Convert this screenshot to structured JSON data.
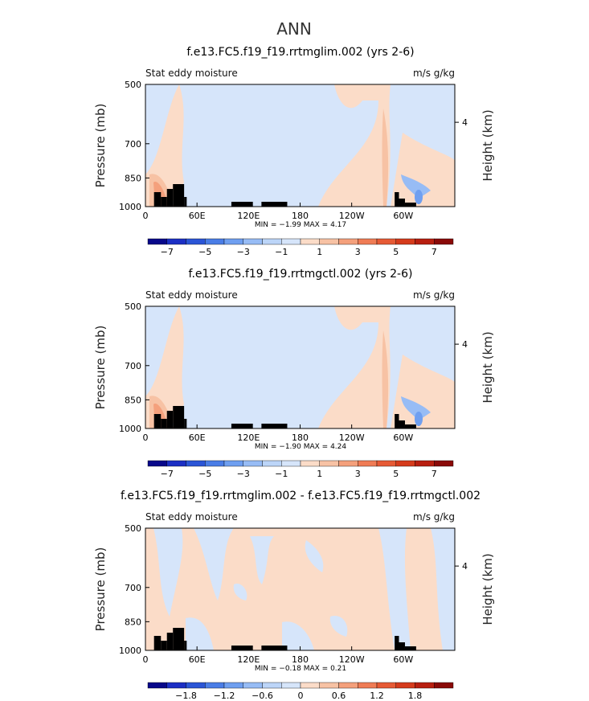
{
  "figure": {
    "title": "ANN"
  },
  "chart_data": [
    {
      "type": "heatmap",
      "title": "f.e13.FC5.f19_f19.rrtmglim.002 (yrs 2-6)",
      "field_label": "Stat eddy moisture",
      "units_label": "m/s g/kg",
      "ylabel": "Pressure (mb)",
      "ylabel_right": "Height (km)",
      "x_ticks": [
        "0",
        "60E",
        "120E",
        "180",
        "120W",
        "60W"
      ],
      "x_tick_lons": [
        0,
        60,
        120,
        180,
        240,
        300
      ],
      "xlim": [
        0,
        360
      ],
      "y_ticks": [
        "500",
        "700",
        "850",
        "1000"
      ],
      "y_tick_vals": [
        500,
        700,
        850,
        1000
      ],
      "ylim": [
        1000,
        500
      ],
      "y_right_ticks": [
        "4"
      ],
      "y_right_vals": [
        4
      ],
      "stats": "MIN =   −1.99  MAX =    4.17",
      "colorbar_labels": [
        "−7",
        "−5",
        "−3",
        "−1",
        "1",
        "3",
        "5",
        "7"
      ],
      "colorbar_levels": [
        -8,
        -7,
        -6,
        -5,
        -4,
        -3,
        -2,
        -1,
        0,
        1,
        2,
        3,
        4,
        5,
        6,
        7,
        8
      ],
      "min": -1.99,
      "max": 4.17
    },
    {
      "type": "heatmap",
      "title": "f.e13.FC5.f19_f19.rrtmgctl.002 (yrs 2-6)",
      "field_label": "Stat eddy moisture",
      "units_label": "m/s g/kg",
      "ylabel": "Pressure (mb)",
      "ylabel_right": "Height (km)",
      "x_ticks": [
        "0",
        "60E",
        "120E",
        "180",
        "120W",
        "60W"
      ],
      "x_tick_lons": [
        0,
        60,
        120,
        180,
        240,
        300
      ],
      "xlim": [
        0,
        360
      ],
      "y_ticks": [
        "500",
        "700",
        "850",
        "1000"
      ],
      "y_tick_vals": [
        500,
        700,
        850,
        1000
      ],
      "ylim": [
        1000,
        500
      ],
      "y_right_ticks": [
        "4"
      ],
      "y_right_vals": [
        4
      ],
      "stats": "MIN =   −1.90  MAX =    4.24",
      "colorbar_labels": [
        "−7",
        "−5",
        "−3",
        "−1",
        "1",
        "3",
        "5",
        "7"
      ],
      "colorbar_levels": [
        -8,
        -7,
        -6,
        -5,
        -4,
        -3,
        -2,
        -1,
        0,
        1,
        2,
        3,
        4,
        5,
        6,
        7,
        8
      ],
      "min": -1.9,
      "max": 4.24
    },
    {
      "type": "heatmap",
      "title": "f.e13.FC5.f19_f19.rrtmglim.002 - f.e13.FC5.f19_f19.rrtmgctl.002",
      "field_label": "Stat eddy moisture",
      "units_label": "m/s g/kg",
      "ylabel": "Pressure (mb)",
      "ylabel_right": "Height (km)",
      "x_ticks": [
        "0",
        "60E",
        "120E",
        "180",
        "120W",
        "60W"
      ],
      "x_tick_lons": [
        0,
        60,
        120,
        180,
        240,
        300
      ],
      "xlim": [
        0,
        360
      ],
      "y_ticks": [
        "500",
        "700",
        "850",
        "1000"
      ],
      "y_tick_vals": [
        500,
        700,
        850,
        1000
      ],
      "ylim": [
        1000,
        500
      ],
      "y_right_ticks": [
        "4"
      ],
      "y_right_vals": [
        4
      ],
      "stats": "MIN =   −0.18  MAX =    0.21",
      "colorbar_labels": [
        "−1.8",
        "−1.2",
        "−0.6",
        "0",
        "0.6",
        "1.2",
        "1.8"
      ],
      "colorbar_levels": [
        -2.4,
        -2.1,
        -1.8,
        -1.5,
        -1.2,
        -0.9,
        -0.6,
        -0.3,
        0,
        0.3,
        0.6,
        0.9,
        1.2,
        1.5,
        1.8,
        2.1,
        2.4
      ],
      "min": -0.18,
      "max": 0.21
    }
  ],
  "colorbar_colors": [
    "#08088a",
    "#1c2fc4",
    "#2b55d6",
    "#4a7de6",
    "#6f9ff0",
    "#97bcf5",
    "#bcd5f8",
    "#d6e5fa",
    "#fbdcc8",
    "#f7c2a4",
    "#f4a07c",
    "#ef7c55",
    "#e65a35",
    "#d53b1c",
    "#b81f10",
    "#8a0a08"
  ]
}
